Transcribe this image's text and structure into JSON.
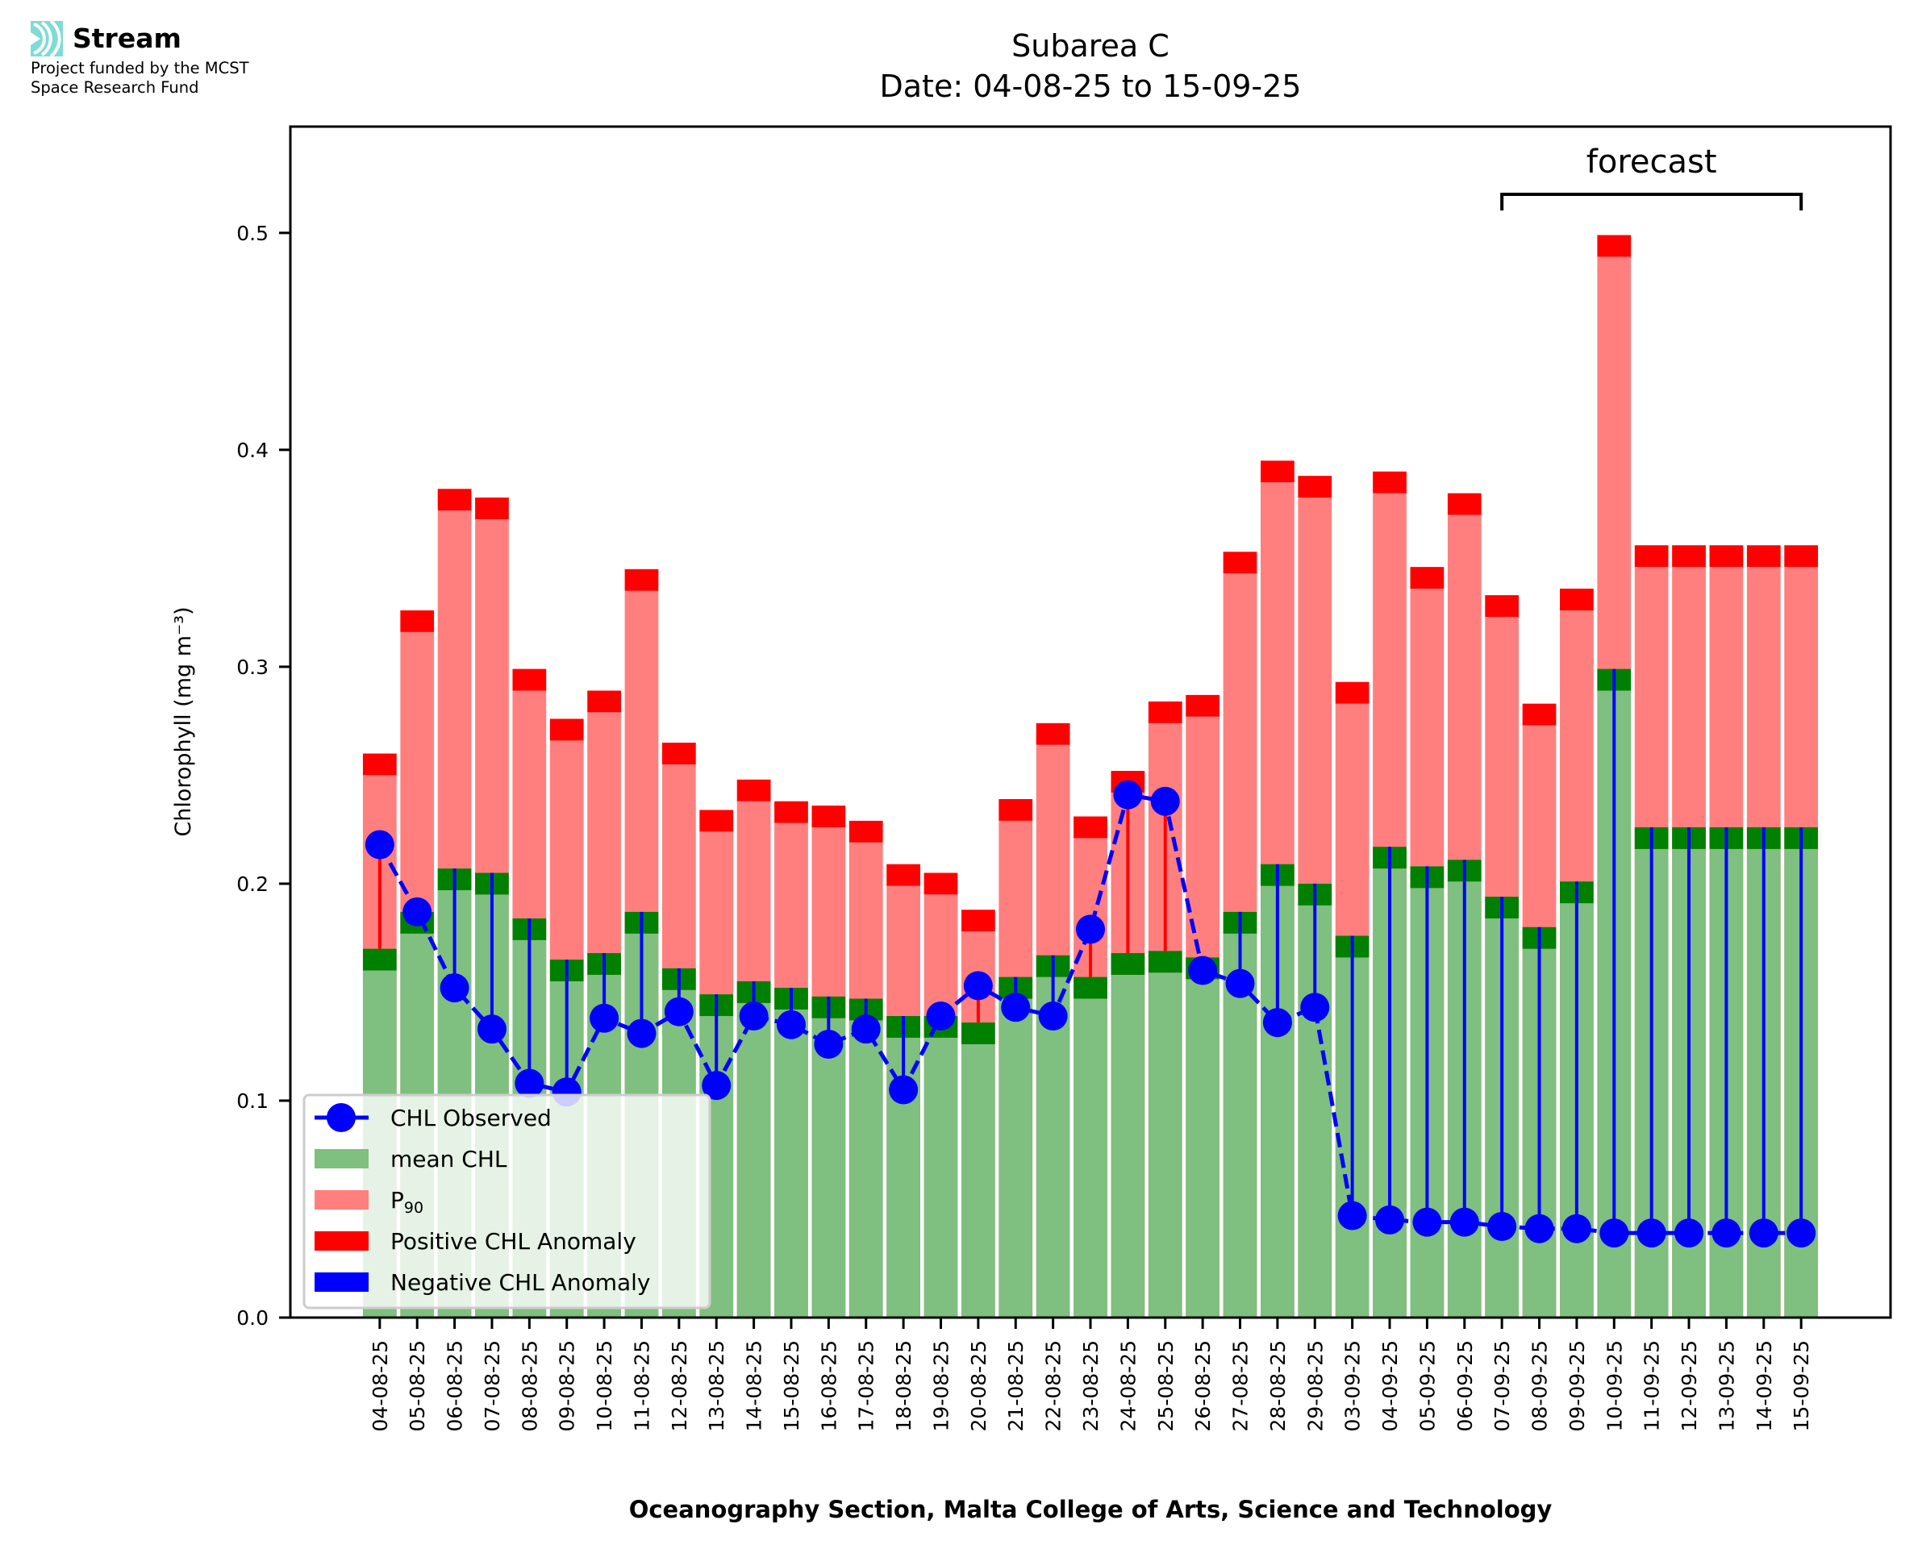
{
  "branding": {
    "logo_icon": "stream-waves-icon",
    "name": "Stream",
    "funding_line1": "Project funded by the MCST",
    "funding_line2": "Space Research Fund",
    "accent_color": "#7fdbd7"
  },
  "chart_data": {
    "type": "bar",
    "title": "Subarea C",
    "subtitle": "Date: 04-08-25 to 15-09-25",
    "xlabel": "Oceanography Section, Malta College of Arts, Science and Technology",
    "ylabel": "Chlorophyll (mg m⁻³)",
    "ylim": [
      0,
      0.549
    ],
    "yticks": [
      0.0,
      0.1,
      0.2,
      0.3,
      0.4,
      0.5
    ],
    "ytick_labels": [
      "0.0",
      "0.1",
      "0.2",
      "0.3",
      "0.4",
      "0.5"
    ],
    "grid": false,
    "anomaly_band": 0.01,
    "categories": [
      "04-08-25",
      "05-08-25",
      "06-08-25",
      "07-08-25",
      "08-08-25",
      "09-08-25",
      "10-08-25",
      "11-08-25",
      "12-08-25",
      "13-08-25",
      "14-08-25",
      "15-08-25",
      "16-08-25",
      "17-08-25",
      "18-08-25",
      "19-08-25",
      "20-08-25",
      "21-08-25",
      "22-08-25",
      "23-08-25",
      "24-08-25",
      "25-08-25",
      "26-08-25",
      "27-08-25",
      "28-08-25",
      "29-08-25",
      "03-09-25",
      "04-09-25",
      "05-09-25",
      "06-09-25",
      "07-09-25",
      "08-09-25",
      "09-09-25",
      "10-09-25",
      "11-09-25",
      "12-09-25",
      "13-09-25",
      "14-09-25",
      "15-09-25"
    ],
    "series": [
      {
        "name": "mean CHL",
        "kind": "bar",
        "color": "#7fbf7f",
        "values": [
          0.16,
          0.177,
          0.197,
          0.195,
          0.174,
          0.155,
          0.158,
          0.177,
          0.151,
          0.139,
          0.145,
          0.142,
          0.138,
          0.137,
          0.129,
          0.129,
          0.126,
          0.147,
          0.157,
          0.147,
          0.158,
          0.159,
          0.156,
          0.177,
          0.199,
          0.19,
          0.166,
          0.207,
          0.198,
          0.201,
          0.184,
          0.17,
          0.191,
          0.289,
          0.216,
          0.216,
          0.216,
          0.216,
          0.216
        ]
      },
      {
        "name": "P₉₀",
        "kind": "bar",
        "color": "#ff7f7f",
        "values": [
          0.25,
          0.316,
          0.372,
          0.368,
          0.289,
          0.266,
          0.279,
          0.335,
          0.255,
          0.224,
          0.238,
          0.228,
          0.226,
          0.219,
          0.199,
          0.195,
          0.178,
          0.229,
          0.264,
          0.221,
          0.242,
          0.274,
          0.277,
          0.343,
          0.385,
          0.378,
          0.283,
          0.38,
          0.336,
          0.37,
          0.323,
          0.273,
          0.326,
          0.489,
          0.346,
          0.346,
          0.346,
          0.346,
          0.346
        ]
      },
      {
        "name": "CHL Observed",
        "kind": "line",
        "color": "#0000ff",
        "values": [
          0.218,
          0.187,
          0.152,
          0.133,
          0.108,
          0.104,
          0.138,
          0.131,
          0.141,
          0.107,
          0.139,
          0.135,
          0.126,
          0.133,
          0.105,
          0.139,
          0.153,
          0.143,
          0.139,
          0.179,
          0.241,
          0.238,
          0.16,
          0.154,
          0.136,
          0.143,
          0.047,
          0.045,
          0.044,
          0.044,
          0.042,
          0.041,
          0.041,
          0.039,
          0.039,
          0.039,
          0.039,
          0.039,
          0.039
        ]
      }
    ],
    "legend": {
      "placement": "lower-left",
      "entries": [
        {
          "label": "CHL Observed",
          "color": "#0000ff",
          "handle": "line-marker"
        },
        {
          "label": "mean CHL",
          "color": "#7fbf7f",
          "handle": "patch"
        },
        {
          "label": "P",
          "sub": "90",
          "color": "#ff7f7f",
          "handle": "patch"
        },
        {
          "label": "Positive CHL Anomaly",
          "color": "#ff0000",
          "handle": "patch"
        },
        {
          "label": "Negative CHL Anomaly",
          "color": "#0000ff",
          "handle": "patch"
        }
      ]
    },
    "annotations": [
      {
        "text": "forecast",
        "from": "07-09-25",
        "to": "15-09-25"
      }
    ],
    "colors": {
      "mean_band": "#008000",
      "p90_band": "#ff0000",
      "positive_anomaly": "#ff0000",
      "negative_anomaly": "#0000ff"
    }
  }
}
